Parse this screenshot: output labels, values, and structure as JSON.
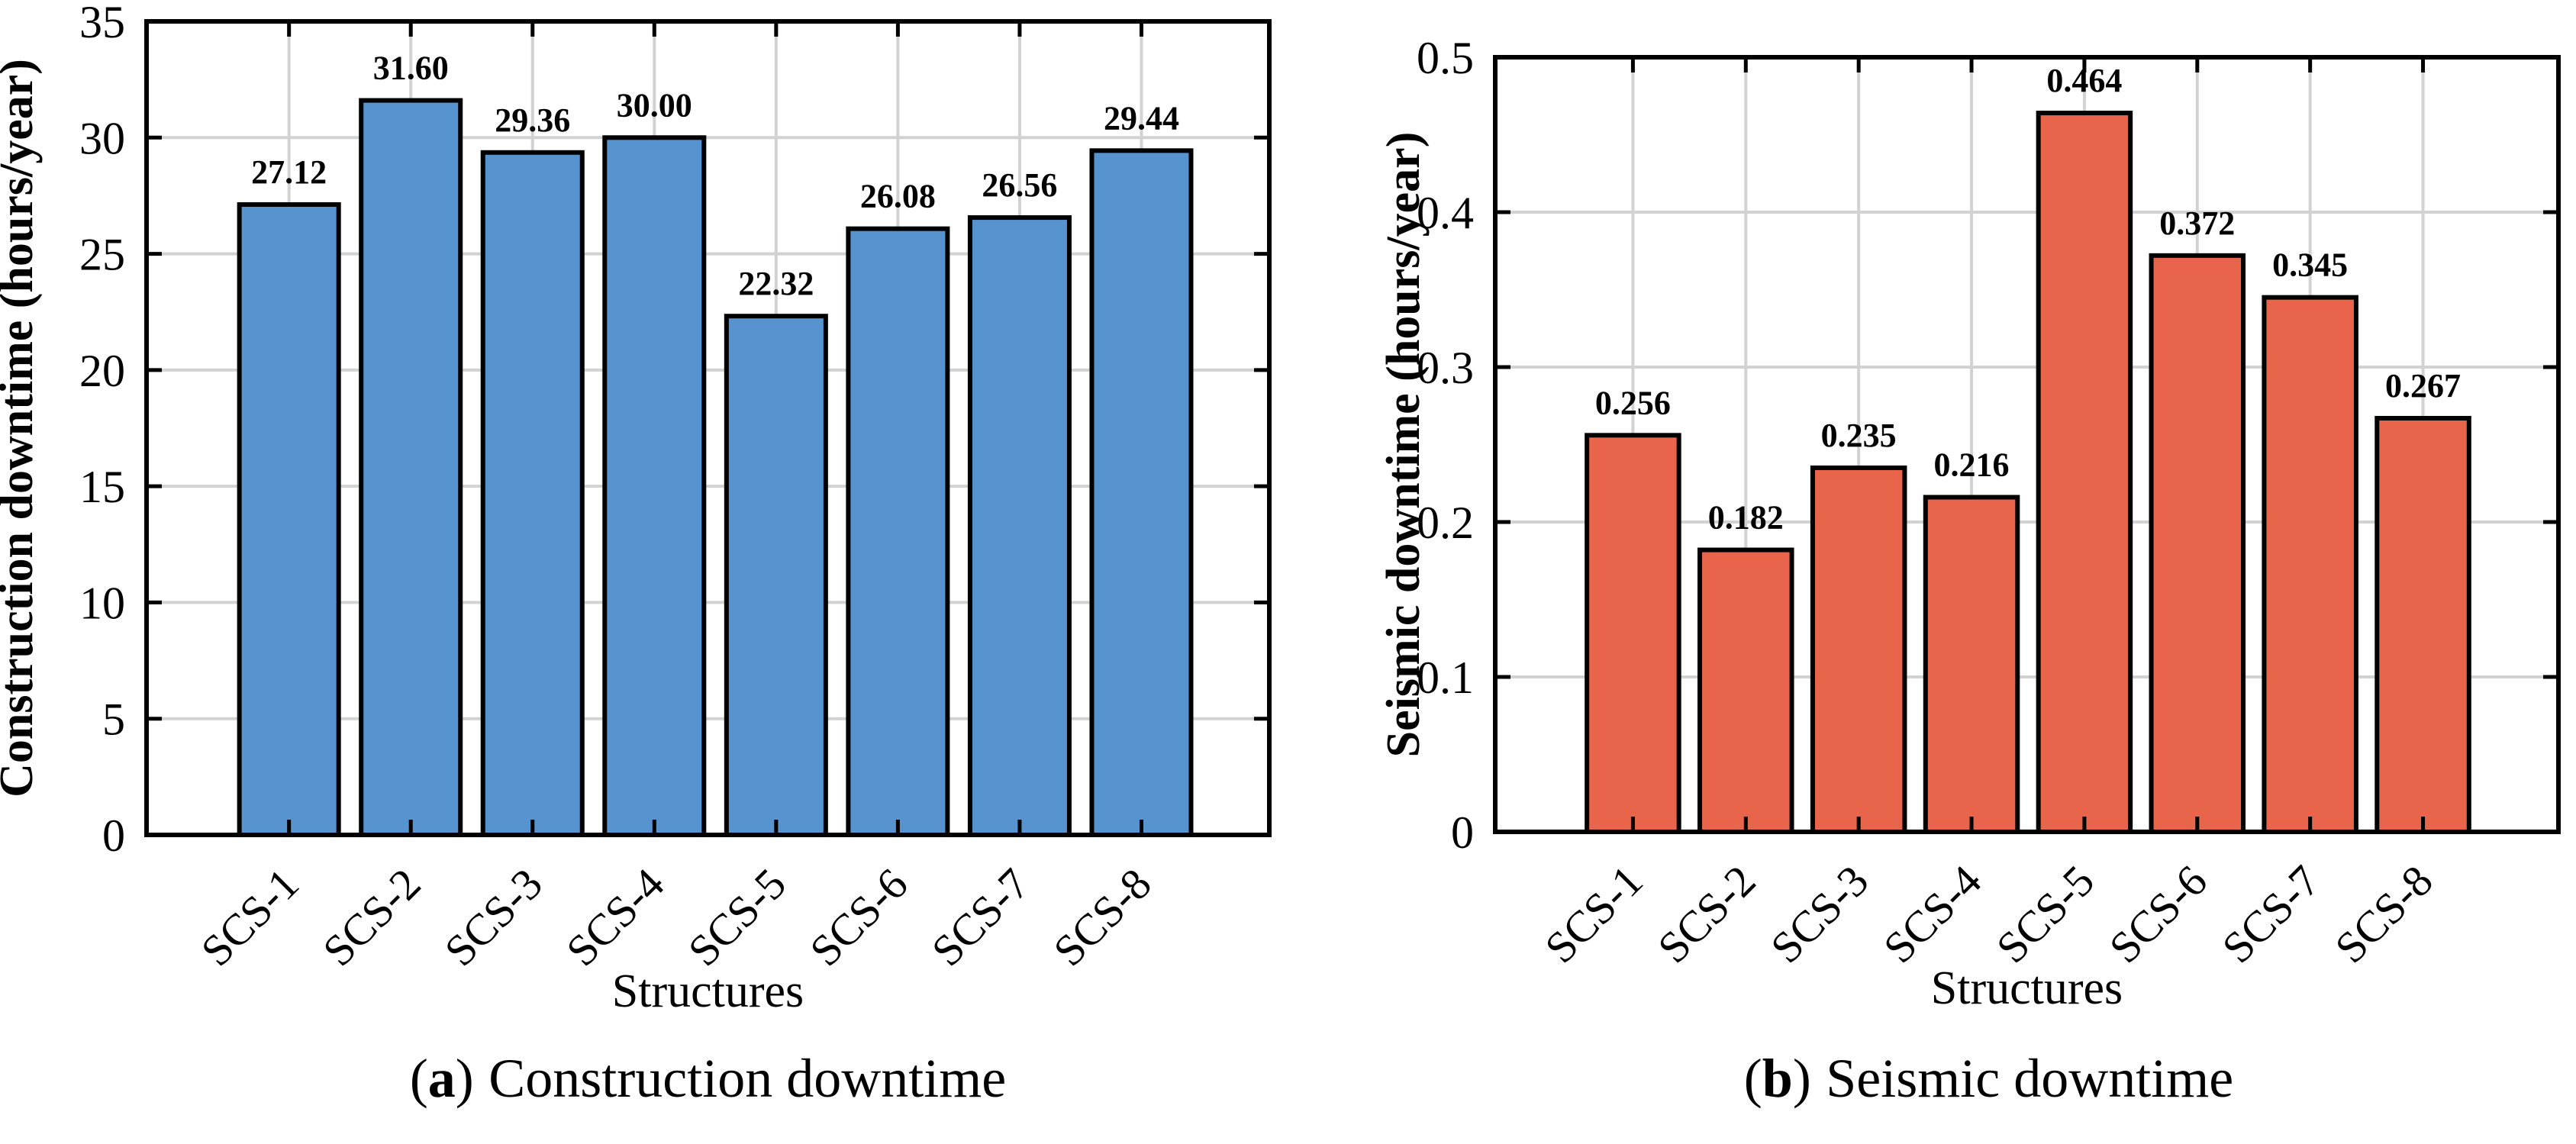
{
  "figure": {
    "captions": [
      {
        "prefix": "(",
        "letter": "a",
        "suffix": ")",
        "text": "Construction downtime"
      },
      {
        "prefix": "(",
        "letter": "b",
        "suffix": ")",
        "text": "Seismic downtime"
      }
    ]
  },
  "chart_data": [
    {
      "type": "bar",
      "title": "",
      "categories": [
        "SCS-1",
        "SCS-2",
        "SCS-3",
        "SCS-4",
        "SCS-5",
        "SCS-6",
        "SCS-7",
        "SCS-8"
      ],
      "values": [
        27.12,
        31.6,
        29.36,
        30.0,
        22.32,
        26.08,
        26.56,
        29.44
      ],
      "value_labels": [
        "27.12",
        "31.60",
        "29.36",
        "30.00",
        "22.32",
        "26.08",
        "26.56",
        "29.44"
      ],
      "xlabel": "Structures",
      "ylabel": "Construction downtime (hours/year)",
      "ylim": [
        0,
        35
      ],
      "yticks": [
        0,
        5,
        10,
        15,
        20,
        25,
        30,
        35
      ],
      "ytick_labels": [
        "0",
        "5",
        "10",
        "15",
        "20",
        "25",
        "30",
        "35"
      ],
      "grid": true,
      "legend": "none",
      "bar_color": "#5793CE",
      "bar_edge_color": "#000000",
      "grid_color": "#D2D2D2",
      "axis_color": "#000000"
    },
    {
      "type": "bar",
      "title": "",
      "categories": [
        "SCS-1",
        "SCS-2",
        "SCS-3",
        "SCS-4",
        "SCS-5",
        "SCS-6",
        "SCS-7",
        "SCS-8"
      ],
      "values": [
        0.256,
        0.182,
        0.235,
        0.216,
        0.464,
        0.372,
        0.345,
        0.267
      ],
      "value_labels": [
        "0.256",
        "0.182",
        "0.235",
        "0.216",
        "0.464",
        "0.372",
        "0.345",
        "0.267"
      ],
      "xlabel": "Structures",
      "ylabel": "Seismic downtime (hours/year)",
      "ylim": [
        0,
        0.5
      ],
      "yticks": [
        0,
        0.1,
        0.2,
        0.3,
        0.4,
        0.5
      ],
      "ytick_labels": [
        "0",
        "0.1",
        "0.2",
        "0.3",
        "0.4",
        "0.5"
      ],
      "grid": true,
      "legend": "none",
      "bar_color": "#E8654C",
      "bar_edge_color": "#000000",
      "grid_color": "#D2D2D2",
      "axis_color": "#000000"
    }
  ]
}
